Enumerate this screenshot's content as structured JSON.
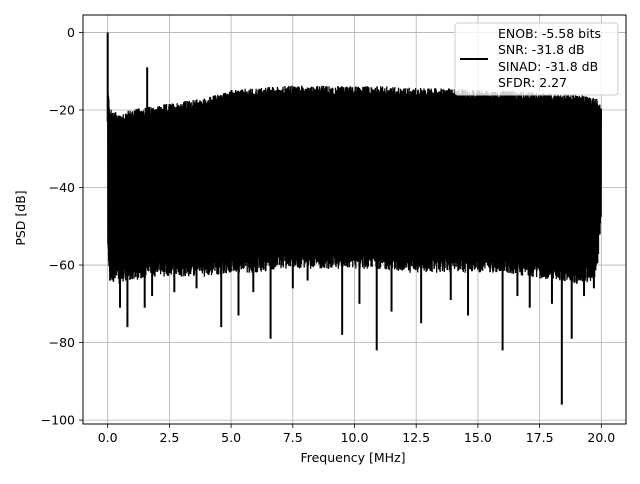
{
  "chart_data": {
    "type": "line",
    "title": "",
    "xlabel": "Frequency [MHz]",
    "ylabel": "PSD [dB]",
    "xlim": [
      -1.0,
      21.0
    ],
    "ylim": [
      -101.0,
      4.5
    ],
    "x_ticks": [
      0.0,
      2.5,
      5.0,
      7.5,
      10.0,
      12.5,
      15.0,
      17.5,
      20.0
    ],
    "x_tick_labels": [
      "0.0",
      "2.5",
      "5.0",
      "7.5",
      "10.0",
      "12.5",
      "15.0",
      "17.5",
      "20.0"
    ],
    "y_ticks": [
      0,
      -20,
      -40,
      -60,
      -80,
      -100
    ],
    "y_tick_labels": [
      "0",
      "−20",
      "−40",
      "−60",
      "−80",
      "−100"
    ],
    "grid": true,
    "legend_position": "top-right",
    "legend_lines": [
      "ENOB: -5.58 bits",
      "SNR: -31.8 dB",
      "SINAD: -31.8 dB",
      "SFDR: 2.27"
    ],
    "series": [
      {
        "color": "#000000",
        "envelope": {
          "x": [
            0.0,
            0.1,
            0.5,
            1.0,
            2.0,
            3.0,
            4.0,
            5.0,
            6.0,
            7.0,
            8.0,
            9.0,
            10.0,
            11.0,
            12.0,
            13.0,
            14.0,
            15.0,
            16.0,
            17.0,
            18.0,
            19.0,
            19.8,
            20.0
          ],
          "upper": [
            -15,
            -21,
            -22,
            -21,
            -20,
            -19,
            -18,
            -16,
            -15.5,
            -15,
            -14.8,
            -15,
            -15,
            -15,
            -15.3,
            -15.5,
            -15.7,
            -16,
            -16.2,
            -16.5,
            -16.8,
            -17,
            -18,
            -20
          ],
          "lower": [
            -56,
            -62,
            -63,
            -62,
            -61,
            -61,
            -61,
            -60,
            -60,
            -59,
            -59,
            -59,
            -59,
            -59,
            -60,
            -60,
            -60,
            -60,
            -60,
            -61,
            -62,
            -63,
            -62,
            -46
          ]
        },
        "peaks": [
          {
            "x": 0.0,
            "y": 0.0
          },
          {
            "x": 1.6,
            "y": -9.0
          }
        ],
        "dips": [
          {
            "x": 0.1,
            "y": -64.0
          },
          {
            "x": 0.5,
            "y": -71.0
          },
          {
            "x": 0.8,
            "y": -76.0
          },
          {
            "x": 1.5,
            "y": -71.0
          },
          {
            "x": 1.8,
            "y": -68.0
          },
          {
            "x": 2.7,
            "y": -67.0
          },
          {
            "x": 3.6,
            "y": -66.0
          },
          {
            "x": 4.6,
            "y": -76.0
          },
          {
            "x": 5.3,
            "y": -73.0
          },
          {
            "x": 5.9,
            "y": -67.0
          },
          {
            "x": 6.6,
            "y": -79.0
          },
          {
            "x": 7.5,
            "y": -66.0
          },
          {
            "x": 8.1,
            "y": -64.0
          },
          {
            "x": 9.5,
            "y": -78.0
          },
          {
            "x": 10.2,
            "y": -70.0
          },
          {
            "x": 10.9,
            "y": -82.0
          },
          {
            "x": 11.5,
            "y": -72.0
          },
          {
            "x": 12.7,
            "y": -75.0
          },
          {
            "x": 13.9,
            "y": -69.0
          },
          {
            "x": 14.6,
            "y": -73.0
          },
          {
            "x": 16.0,
            "y": -82.0
          },
          {
            "x": 16.6,
            "y": -68.0
          },
          {
            "x": 17.1,
            "y": -71.0
          },
          {
            "x": 18.0,
            "y": -70.0
          },
          {
            "x": 18.4,
            "y": -96.0
          },
          {
            "x": 18.8,
            "y": -79.0
          },
          {
            "x": 19.3,
            "y": -68.0
          },
          {
            "x": 19.7,
            "y": -66.0
          }
        ]
      }
    ]
  }
}
